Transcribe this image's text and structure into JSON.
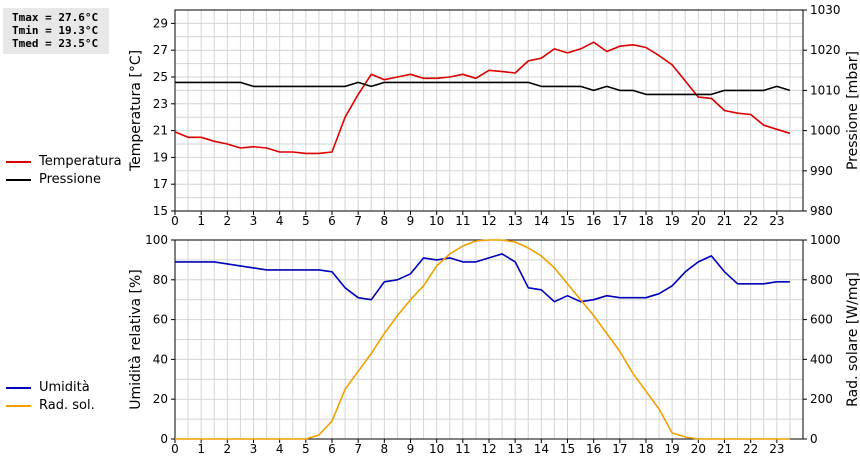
{
  "stats": {
    "tmax": "Tmax = 27.6°C",
    "tmin": "Tmin = 19.3°C",
    "tmed": "Tmed = 23.5°C"
  },
  "legend_top": {
    "items": [
      {
        "label": "Temperatura",
        "color": "#dd0000"
      },
      {
        "label": "Pressione",
        "color": "#000000"
      }
    ]
  },
  "legend_bottom": {
    "items": [
      {
        "label": "Umidità",
        "color": "#0000bb"
      },
      {
        "label": "Rad. sol.",
        "color": "#f0a000"
      }
    ]
  },
  "chart_data": [
    {
      "type": "line",
      "ylabel": "Temperatura [°C]",
      "y2label": "Pressione [mbar]",
      "xlim": [
        0,
        24
      ],
      "ylim": [
        15,
        30
      ],
      "y2lim": [
        980,
        1030
      ],
      "x_ticks": [
        "0",
        "1",
        "2",
        "3",
        "4",
        "5",
        "6",
        "7",
        "8",
        "9",
        "10",
        "11",
        "12",
        "13",
        "14",
        "15",
        "16",
        "17",
        "18",
        "19",
        "20",
        "21",
        "22",
        "23"
      ],
      "y_ticks": [
        "15",
        "17",
        "19",
        "21",
        "23",
        "25",
        "27",
        "29"
      ],
      "y2_ticks": [
        "980",
        "990",
        "1000",
        "1010",
        "1020",
        "1030"
      ],
      "grid": true,
      "series": [
        {
          "name": "Temperatura",
          "axis": "left",
          "color": "#dd0000",
          "x": [
            0,
            0.5,
            1,
            1.5,
            2,
            2.5,
            3,
            3.5,
            4,
            4.5,
            5,
            5.5,
            6,
            6.5,
            7,
            7.5,
            8,
            8.5,
            9,
            9.5,
            10,
            10.5,
            11,
            11.5,
            12,
            12.5,
            13,
            13.5,
            14,
            14.5,
            15,
            15.5,
            16,
            16.5,
            17,
            17.5,
            18,
            18.5,
            19,
            19.5,
            20,
            20.5,
            21,
            21.5,
            22,
            22.5,
            23,
            23.5
          ],
          "y": [
            20.9,
            20.5,
            20.5,
            20.2,
            20.0,
            19.7,
            19.8,
            19.7,
            19.4,
            19.4,
            19.3,
            19.3,
            19.4,
            22.0,
            23.7,
            25.2,
            24.8,
            25.0,
            25.2,
            24.9,
            24.9,
            25.0,
            25.2,
            24.9,
            25.5,
            25.4,
            25.3,
            26.2,
            26.4,
            27.1,
            26.8,
            27.1,
            27.6,
            26.9,
            27.3,
            27.4,
            27.2,
            26.6,
            25.9,
            24.7,
            23.5,
            23.4,
            22.5,
            22.3,
            22.2,
            21.4,
            21.1,
            20.8
          ]
        },
        {
          "name": "Pressione",
          "axis": "right",
          "color": "#000000",
          "x": [
            0,
            2.5,
            3,
            6.5,
            7,
            7.5,
            8,
            13,
            13.5,
            14,
            15.5,
            16,
            16.5,
            17,
            17.5,
            18,
            20,
            20.5,
            21,
            22,
            22.5,
            23,
            23.5
          ],
          "y": [
            1012,
            1012,
            1011,
            1011,
            1012,
            1011,
            1012,
            1012,
            1012,
            1011,
            1011,
            1010,
            1011,
            1010,
            1010,
            1009,
            1009,
            1009,
            1010,
            1010,
            1010,
            1011,
            1010
          ]
        }
      ]
    },
    {
      "type": "line",
      "ylabel": "Umidità relativa [%]",
      "y2label": "Rad. solare [W/mq]",
      "xlim": [
        0,
        24
      ],
      "ylim": [
        0,
        100
      ],
      "y2lim": [
        0,
        1000
      ],
      "x_ticks": [
        "0",
        "1",
        "2",
        "3",
        "4",
        "5",
        "6",
        "7",
        "8",
        "9",
        "10",
        "11",
        "12",
        "13",
        "14",
        "15",
        "16",
        "17",
        "18",
        "19",
        "20",
        "21",
        "22",
        "23"
      ],
      "y_ticks": [
        "0",
        "20",
        "40",
        "60",
        "80",
        "100"
      ],
      "y2_ticks": [
        "0",
        "200",
        "400",
        "600",
        "800",
        "1000"
      ],
      "grid": true,
      "series": [
        {
          "name": "Umidità",
          "axis": "left",
          "color": "#0000bb",
          "x": [
            0,
            0.5,
            1,
            1.5,
            2,
            2.5,
            3,
            3.5,
            4,
            4.5,
            5,
            5.5,
            6,
            6.5,
            7,
            7.5,
            8,
            8.5,
            9,
            9.5,
            10,
            10.5,
            11,
            11.5,
            12,
            12.5,
            13,
            13.5,
            14,
            14.5,
            15,
            15.5,
            16,
            16.5,
            17,
            17.5,
            18,
            18.5,
            19,
            19.5,
            20,
            20.5,
            21,
            21.5,
            22,
            22.5,
            23,
            23.5
          ],
          "y": [
            89,
            89,
            89,
            89,
            88,
            87,
            86,
            85,
            85,
            85,
            85,
            85,
            84,
            76,
            71,
            70,
            79,
            80,
            83,
            91,
            90,
            91,
            89,
            89,
            91,
            93,
            89,
            76,
            75,
            69,
            72,
            69,
            70,
            72,
            71,
            71,
            71,
            73,
            77,
            84,
            89,
            92,
            84,
            78,
            78,
            78,
            79,
            79
          ]
        },
        {
          "name": "Rad. sol.",
          "axis": "right",
          "color": "#f0a000",
          "x": [
            0,
            0.5,
            1,
            1.5,
            2,
            2.5,
            3,
            3.5,
            4,
            4.5,
            5,
            5.5,
            6,
            6.5,
            7,
            7.5,
            8,
            8.5,
            9,
            9.5,
            10,
            10.5,
            11,
            11.5,
            12,
            12.5,
            13,
            13.5,
            14,
            14.5,
            15,
            15.5,
            16,
            16.5,
            17,
            17.5,
            18,
            18.5,
            19,
            19.5,
            20,
            20.5,
            21,
            21.5,
            22,
            22.5,
            23,
            23.5
          ],
          "y": [
            0,
            0,
            0,
            0,
            0,
            0,
            0,
            0,
            0,
            0,
            0,
            20,
            90,
            250,
            340,
            430,
            530,
            620,
            700,
            770,
            870,
            930,
            970,
            995,
            1000,
            1000,
            990,
            960,
            920,
            860,
            780,
            700,
            620,
            530,
            440,
            330,
            240,
            150,
            30,
            10,
            0,
            0,
            0,
            0,
            0,
            0,
            0,
            0
          ]
        }
      ]
    }
  ]
}
